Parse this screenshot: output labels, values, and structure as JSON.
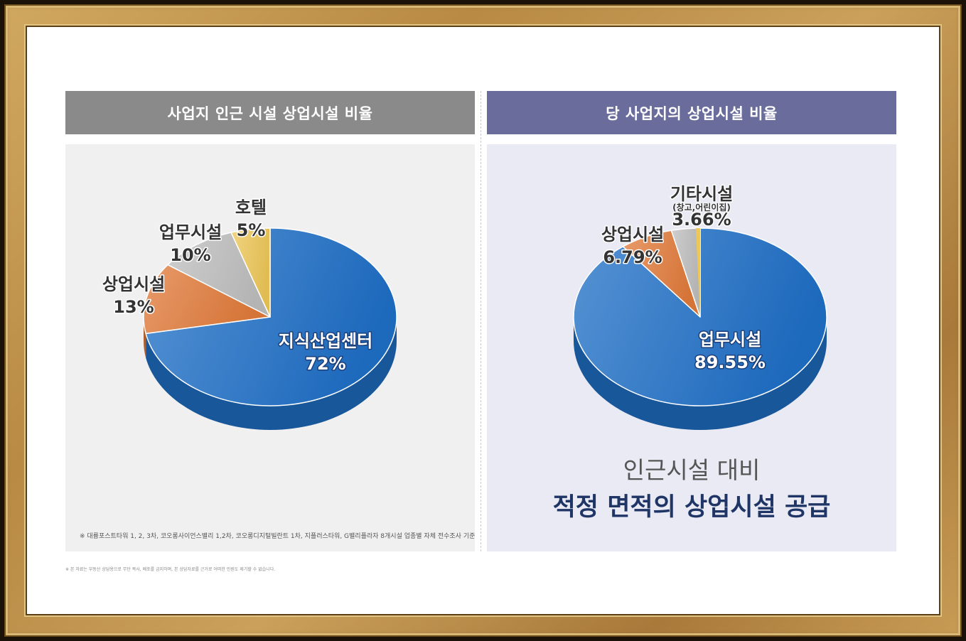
{
  "left_panel": {
    "title": "사업지 인근 시설 상업시설 비율",
    "footnote": "※ 대륭포스트타워 1, 2, 3차, 코오롱사이언스밸리 1,2차, 코오롱디지털빌란트 1차, 지플러스타워, G밸리플라자 8개시설 업종별 자체 전수조사 기준"
  },
  "right_panel": {
    "title": "당 사업지의 상업시설 비율",
    "subtitle": "인근시설 대비",
    "headline": "적정 면적의 상업시설 공급"
  },
  "disclaimer": "※ 본 자료는 부동산 상담용으로 무단 복사, 배포를 금지하며, 본 상담자료를 근거로 어떠한 민원도 제기할 수 없습니다.",
  "chart_data": [
    {
      "type": "pie",
      "title": "사업지 인근 시설 상업시설 비율",
      "slices": [
        {
          "label": "지식산업센터",
          "value": 72,
          "value_label": "72%",
          "color": "#1f6fc6"
        },
        {
          "label": "상업시설",
          "value": 13,
          "value_label": "13%",
          "color": "#e07a3a"
        },
        {
          "label": "업무시설",
          "value": 10,
          "value_label": "10%",
          "color": "#bdbdbd"
        },
        {
          "label": "호텔",
          "value": 5,
          "value_label": "5%",
          "color": "#ecc657"
        }
      ]
    },
    {
      "type": "pie",
      "title": "당 사업지의 상업시설 비율",
      "slices": [
        {
          "label": "업무시설",
          "value": 89.55,
          "value_label": "89.55%",
          "color": "#1f6fc6"
        },
        {
          "label": "상업시설",
          "value": 6.79,
          "value_label": "6.79%",
          "color": "#e07a3a"
        },
        {
          "label": "기타시설",
          "sublabel": "(창고,어린이집)",
          "value": 3.66,
          "value_label": "3.66%",
          "color": "#bdbdbd"
        }
      ],
      "unlabeled_sliver_color": "#ecc657"
    }
  ]
}
